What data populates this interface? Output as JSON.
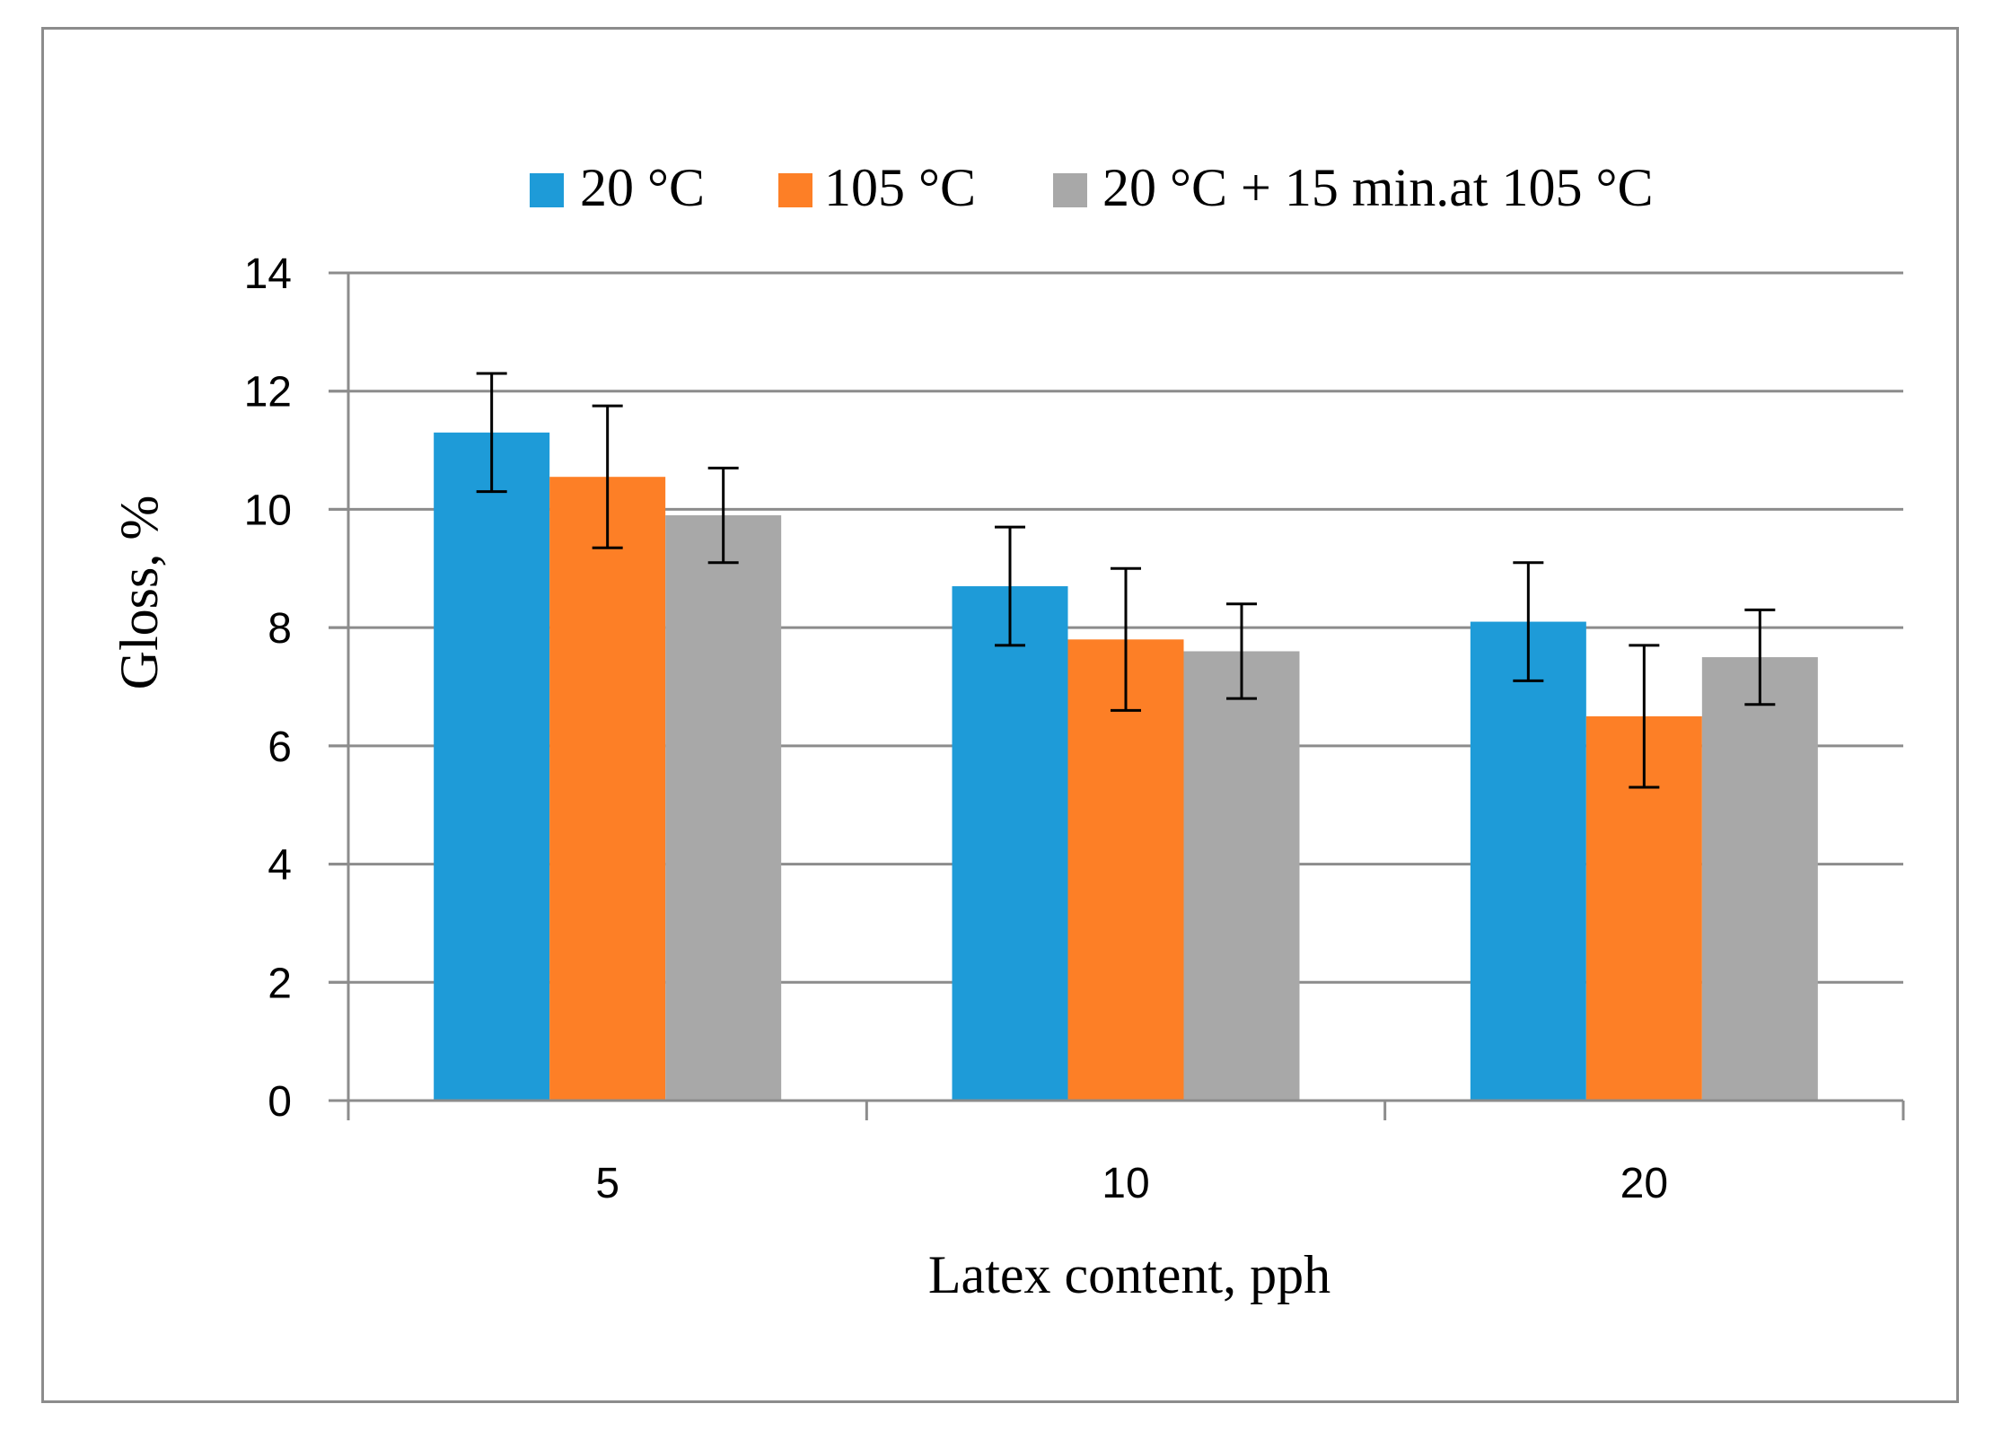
{
  "chart_data": {
    "type": "bar",
    "title": "",
    "xlabel": "Latex content, pph",
    "ylabel": "Gloss, %",
    "categories": [
      "5",
      "10",
      "20"
    ],
    "ylim": [
      0,
      14
    ],
    "yticks": [
      0,
      2,
      4,
      6,
      8,
      10,
      12,
      14
    ],
    "grid": true,
    "legend": "top",
    "series": [
      {
        "name": "20 °C",
        "color": "#1e9bd8",
        "values": [
          11.3,
          8.7,
          8.1
        ],
        "errors": [
          1.0,
          1.0,
          1.0
        ]
      },
      {
        "name": "105 °C",
        "color": "#fd7f26",
        "values": [
          10.55,
          7.8,
          6.5
        ],
        "errors": [
          1.2,
          1.2,
          1.2
        ]
      },
      {
        "name": "20 °C + 15 min.at 105 °C",
        "color": "#a8a8a8",
        "values": [
          9.9,
          7.6,
          7.5
        ],
        "errors": [
          0.8,
          0.8,
          0.8
        ]
      }
    ]
  }
}
